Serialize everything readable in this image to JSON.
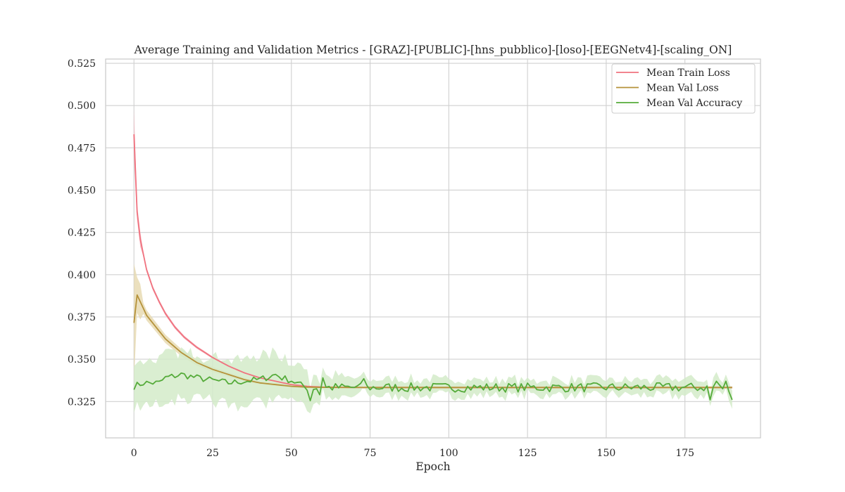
{
  "chart_data": {
    "type": "line",
    "title": "Average Training and Validation Metrics - [GRAZ]-[PUBLIC]-[hns_pubblico]-[loso]-[EEGNetv4]-[scaling_ON]",
    "xlabel": "Epoch",
    "ylabel": "",
    "xlim": [
      -9,
      199
    ],
    "ylim": [
      0.3035,
      0.5275
    ],
    "xticks": [
      0,
      25,
      50,
      75,
      100,
      125,
      150,
      175
    ],
    "yticks": [
      0.325,
      0.35,
      0.375,
      0.4,
      0.425,
      0.45,
      0.475,
      0.5,
      0.525
    ],
    "ytick_labels": [
      "0.325",
      "0.350",
      "0.375",
      "0.400",
      "0.425",
      "0.450",
      "0.475",
      "0.500",
      "0.525"
    ],
    "grid": true,
    "legend_position": "top-right",
    "series": [
      {
        "name": "Mean Train Loss",
        "color": "#f0727f",
        "band_color": "#f4b6bf",
        "model": "exp-decay",
        "x_range": [
          0,
          190
        ],
        "start": 0.483,
        "plateau": 0.3333,
        "anchors": [
          [
            1,
            0.437
          ],
          [
            2,
            0.421
          ],
          [
            4,
            0.403
          ],
          [
            6,
            0.392
          ],
          [
            8,
            0.384
          ],
          [
            10,
            0.377
          ],
          [
            13,
            0.369
          ],
          [
            16,
            0.363
          ],
          [
            20,
            0.357
          ],
          [
            25,
            0.351
          ],
          [
            30,
            0.346
          ],
          [
            35,
            0.342
          ],
          [
            40,
            0.339
          ],
          [
            45,
            0.337
          ],
          [
            50,
            0.335
          ],
          [
            55,
            0.334
          ],
          [
            60,
            0.3335
          ]
        ],
        "band_halfwidth": 0.0015
      },
      {
        "name": "Mean Val Loss",
        "color": "#b5923a",
        "band_color": "#e8dab3",
        "model": "exp-decay",
        "x_range": [
          0,
          190
        ],
        "start": 0.3715,
        "peak": [
          1,
          0.388
        ],
        "plateau": 0.3333,
        "anchors": [
          [
            2,
            0.384
          ],
          [
            4,
            0.376
          ],
          [
            7,
            0.369
          ],
          [
            10,
            0.362
          ],
          [
            15,
            0.354
          ],
          [
            20,
            0.348
          ],
          [
            25,
            0.344
          ],
          [
            30,
            0.341
          ],
          [
            35,
            0.338
          ],
          [
            40,
            0.336
          ],
          [
            45,
            0.335
          ],
          [
            50,
            0.334
          ],
          [
            55,
            0.3335
          ]
        ],
        "band_halfwidth": 0.0035
      },
      {
        "name": "Mean Val Accuracy",
        "color": "#55ab3a",
        "band_color": "#d3ebc9",
        "model": "noisy-flat",
        "x_range": [
          0,
          190
        ],
        "level": 0.3333,
        "early": [
          [
            0,
            0.334
          ],
          [
            3,
            0.336
          ],
          [
            8,
            0.336
          ],
          [
            10,
            0.339
          ],
          [
            15,
            0.341
          ],
          [
            20,
            0.339
          ],
          [
            30,
            0.336
          ],
          [
            40,
            0.338
          ],
          [
            45,
            0.341
          ],
          [
            47,
            0.339
          ],
          [
            50,
            0.3375
          ],
          [
            55,
            0.333
          ]
        ],
        "dips": [
          [
            56,
            0.3255
          ],
          [
            59,
            0.329
          ],
          [
            183,
            0.326
          ],
          [
            185,
            0.326
          ],
          [
            188,
            0.3265
          ],
          [
            190,
            0.326
          ]
        ],
        "peaks": [
          [
            60,
            0.339
          ],
          [
            73,
            0.3385
          ],
          [
            185,
            0.337
          ],
          [
            188,
            0.337
          ]
        ],
        "band_halfwidth_early": 0.0135,
        "band_halfwidth_late": 0.0045
      }
    ]
  }
}
